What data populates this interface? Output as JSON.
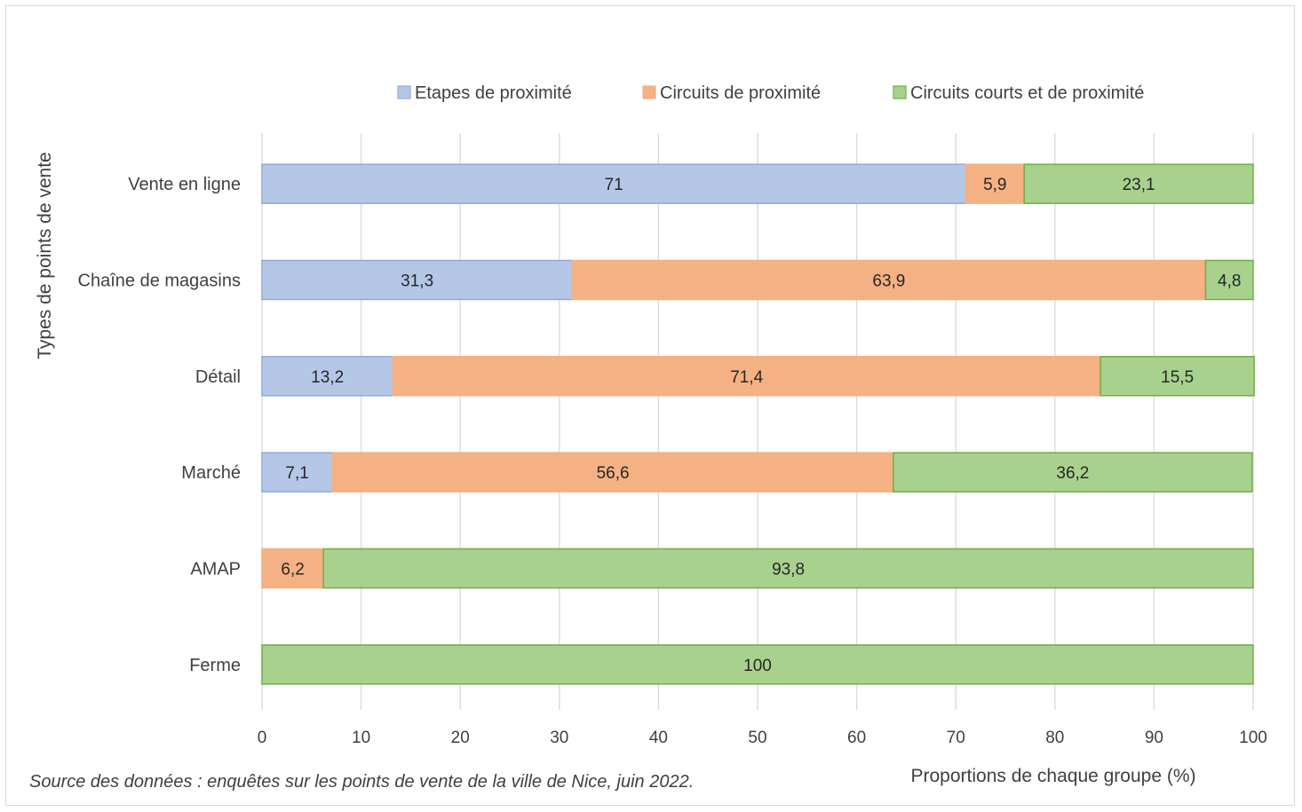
{
  "chart_data": {
    "type": "bar",
    "orientation": "horizontal",
    "stacked": true,
    "categories": [
      "Vente en ligne",
      "Chaîne de magasins",
      "Détail",
      "Marché",
      "AMAP",
      "Ferme"
    ],
    "series": [
      {
        "name": "Etapes de proximité",
        "values": [
          71,
          31.3,
          13.2,
          7.1,
          0,
          0
        ],
        "labels": [
          "71",
          "31,3",
          "13,2",
          "7,1",
          "",
          ""
        ],
        "color": "#b4c7e7",
        "stroke": "#8faadc"
      },
      {
        "name": "Circuits de proximité",
        "values": [
          5.9,
          63.9,
          71.4,
          56.6,
          6.2,
          0
        ],
        "labels": [
          "5,9",
          "63,9",
          "71,4",
          "56,6",
          "6,2",
          ""
        ],
        "color": "#f4b183",
        "stroke": "#f4b183"
      },
      {
        "name": "Circuits courts et de proximité",
        "values": [
          23.1,
          4.8,
          15.5,
          36.2,
          93.8,
          100
        ],
        "labels": [
          "23,1",
          "4,8",
          "15,5",
          "36,2",
          "93,8",
          "100"
        ],
        "color": "#a9d18e",
        "stroke": "#70ad47"
      }
    ],
    "xlabel": "Proportions de chaque groupe (%)",
    "ylabel": "Types de points de vente",
    "xlim": [
      0,
      100
    ],
    "xticks": [
      "0",
      "10",
      "20",
      "30",
      "40",
      "50",
      "60",
      "70",
      "80",
      "90",
      "100"
    ],
    "grid": true,
    "legend_position": "top",
    "source": "Source des données : enquêtes sur les points de vente de la ville de Nice, juin 2022."
  }
}
